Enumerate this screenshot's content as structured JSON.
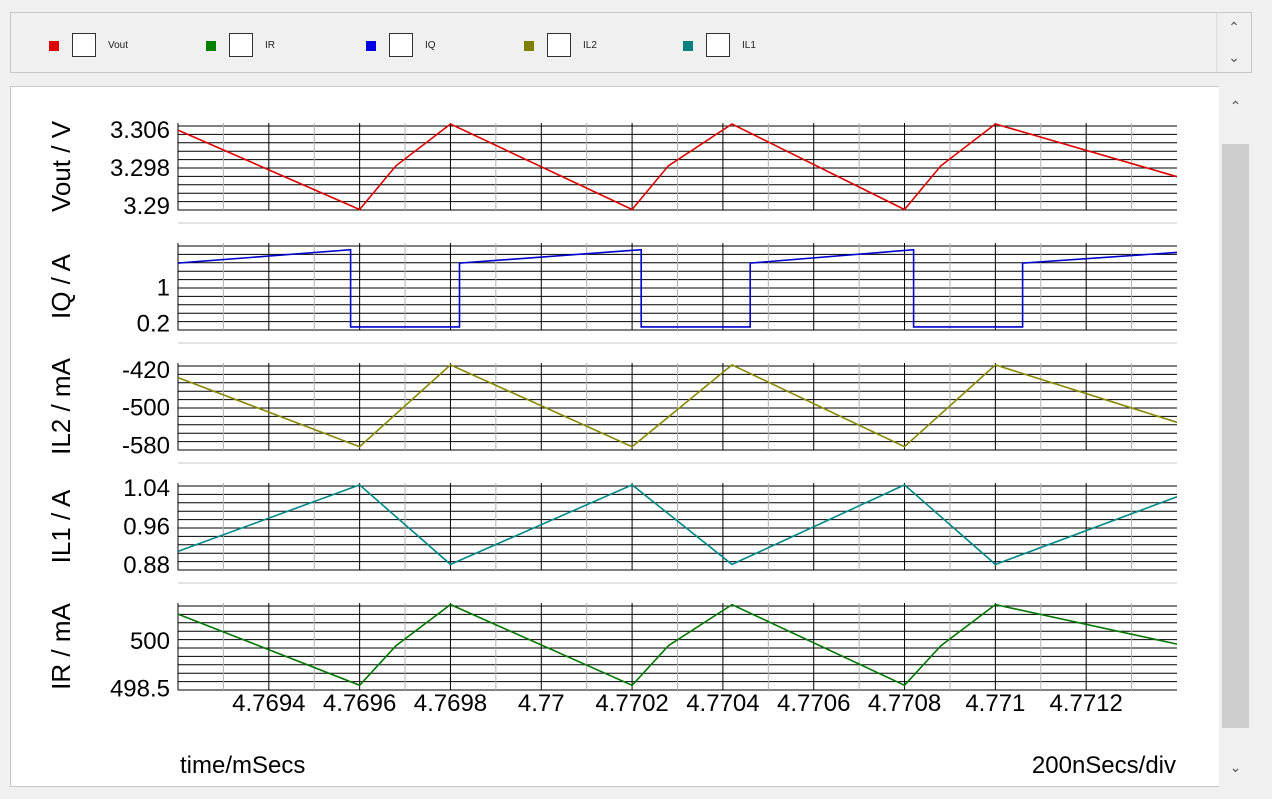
{
  "legend": {
    "items": [
      {
        "label": "Vout",
        "color": "#e00000"
      },
      {
        "label": "IR",
        "color": "#008000"
      },
      {
        "label": "IQ",
        "color": "#0000e0"
      },
      {
        "label": "IL2",
        "color": "#808000"
      },
      {
        "label": "IL1",
        "color": "#008080"
      }
    ],
    "scroll_up_icon": "chevron-up-icon",
    "scroll_down_icon": "chevron-down-icon"
  },
  "footer": {
    "x_axis_label": "time/mSecs",
    "scale_label": "200nSecs/div"
  },
  "chart_data": [
    {
      "type": "line",
      "ylabel": "Vout / V",
      "color": "#dd0000",
      "yticks": [
        3.306,
        3.298,
        3.29
      ],
      "ytick_labels": [
        "3.306",
        "3.298",
        "3.29"
      ],
      "ylim": [
        3.2892,
        3.3075
      ],
      "x": [
        4.7692,
        4.7696,
        4.76968,
        4.7698,
        4.7702,
        4.77028,
        4.77042,
        4.7708,
        4.77088,
        4.771,
        4.7714
      ],
      "y": [
        3.306,
        3.2893,
        3.2985,
        3.3073,
        3.2893,
        3.2985,
        3.3073,
        3.2893,
        3.2985,
        3.3073,
        3.2962
      ]
    },
    {
      "type": "line",
      "ylabel": "IQ / A",
      "color": "#0000cc",
      "yticks": [
        1,
        0.2
      ],
      "ytick_labels": [
        "1",
        "0.2"
      ],
      "ylim": [
        0.05,
        2.0
      ],
      "x": [
        4.7692,
        4.76958,
        4.76958,
        4.76982,
        4.76982,
        4.77022,
        4.77022,
        4.77046,
        4.77046,
        4.77082,
        4.77082,
        4.77106,
        4.77106,
        4.7714
      ],
      "y": [
        1.55,
        1.85,
        0.12,
        0.12,
        1.55,
        1.85,
        0.12,
        0.12,
        1.55,
        1.85,
        0.12,
        0.12,
        1.55,
        1.79
      ]
    },
    {
      "type": "line",
      "ylabel": "IL2 / mA",
      "color": "#888800",
      "yticks": [
        -420,
        -500,
        -580
      ],
      "ytick_labels": [
        "-420",
        "-500",
        "-580"
      ],
      "ylim": [
        -590,
        -405
      ],
      "x": [
        4.7692,
        4.7696,
        4.7698,
        4.7702,
        4.77042,
        4.7708,
        4.771,
        4.7714
      ],
      "y": [
        -436,
        -583,
        -409,
        -583,
        -409,
        -583,
        -409,
        -531
      ]
    },
    {
      "type": "line",
      "ylabel": "IL1 / A",
      "color": "#008888",
      "yticks": [
        1.04,
        0.96,
        0.88
      ],
      "ytick_labels": [
        "1.04",
        "0.96",
        "0.88"
      ],
      "ylim": [
        0.87,
        1.05
      ],
      "x": [
        4.7692,
        4.7696,
        4.7698,
        4.7702,
        4.77042,
        4.7708,
        4.771,
        4.7714
      ],
      "y": [
        0.9085,
        1.046,
        0.8815,
        1.046,
        0.8815,
        1.046,
        0.8815,
        1.0215
      ]
    },
    {
      "type": "line",
      "ylabel": "IR / mA",
      "color": "#007700",
      "yticks": [
        500,
        498.5
      ],
      "ytick_labels": [
        "500",
        "498.5"
      ],
      "ylim": [
        498.45,
        501.2
      ],
      "x": [
        4.7692,
        4.7696,
        4.76968,
        4.7698,
        4.7702,
        4.77028,
        4.77042,
        4.7708,
        4.77088,
        4.771,
        4.7714
      ],
      "y": [
        500.85,
        498.6,
        499.85,
        501.15,
        498.6,
        499.85,
        501.15,
        498.6,
        499.85,
        501.15,
        499.9
      ]
    }
  ],
  "shared_x_axis": {
    "xlim": [
      4.7692,
      4.7714
    ],
    "ticks": [
      4.7694,
      4.7696,
      4.7698,
      4.77,
      4.7702,
      4.7704,
      4.7706,
      4.7708,
      4.771,
      4.7712
    ],
    "tick_labels": [
      "4.7694",
      "4.7696",
      "4.7698",
      "4.77",
      "4.7702",
      "4.7704",
      "4.7706",
      "4.7708",
      "4.771",
      "4.7712"
    ]
  }
}
